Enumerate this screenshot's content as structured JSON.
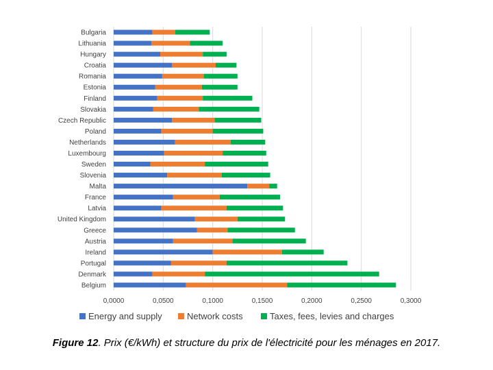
{
  "chart_data": {
    "type": "bar",
    "orientation": "horizontal",
    "stacked": true,
    "categories": [
      "Bulgaria",
      "Lithuania",
      "Hungary",
      "Croatia",
      "Romania",
      "Estonia",
      "Finland",
      "Slovakia",
      "Czech Republic",
      "Poland",
      "Netherlands",
      "Luxembourg",
      "Sweden",
      "Slovenia",
      "Malta",
      "France",
      "Latvia",
      "United Kingdom",
      "Greece",
      "Austria",
      "Ireland",
      "Portugal",
      "Denmark",
      "Belgium"
    ],
    "series": [
      {
        "name": "Energy and supply",
        "color": "#4472c4",
        "values": [
          0.039,
          0.038,
          0.047,
          0.059,
          0.049,
          0.042,
          0.044,
          0.04,
          0.059,
          0.048,
          0.062,
          0.051,
          0.037,
          0.054,
          0.135,
          0.06,
          0.048,
          0.082,
          0.084,
          0.06,
          0.1,
          0.058,
          0.039,
          0.073
        ]
      },
      {
        "name": "Network costs",
        "color": "#ed7d31",
        "values": [
          0.023,
          0.039,
          0.043,
          0.044,
          0.042,
          0.047,
          0.046,
          0.046,
          0.043,
          0.052,
          0.056,
          0.059,
          0.055,
          0.055,
          0.022,
          0.047,
          0.066,
          0.043,
          0.031,
          0.06,
          0.07,
          0.056,
          0.053,
          0.102
        ]
      },
      {
        "name": "Taxes, fees, levies and charges",
        "color": "#00b050",
        "values": [
          0.035,
          0.033,
          0.024,
          0.021,
          0.034,
          0.036,
          0.05,
          0.061,
          0.047,
          0.051,
          0.035,
          0.044,
          0.064,
          0.049,
          0.008,
          0.061,
          0.057,
          0.048,
          0.068,
          0.074,
          0.042,
          0.122,
          0.176,
          0.11
        ]
      }
    ],
    "xlim": [
      0,
      0.3
    ],
    "xticks": [
      "0,0000",
      "0,0500",
      "0,1000",
      "0,1500",
      "0,2000",
      "0,2500",
      "0,3000"
    ],
    "xgrid": true,
    "legend_position": "bottom"
  },
  "caption": {
    "label": "Figure 12",
    "text": ". Prix (€/kWh) et structure du prix de l'électricité pour les ménages en 2017."
  }
}
